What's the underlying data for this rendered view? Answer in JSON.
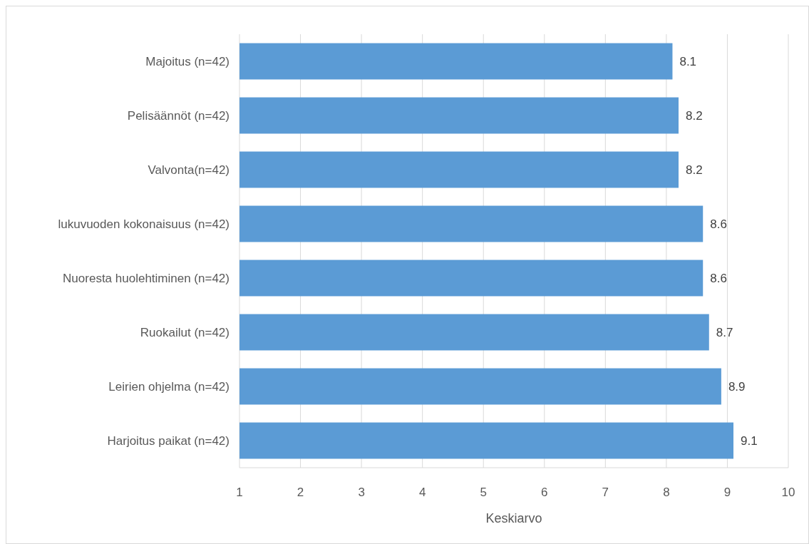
{
  "chart_data": {
    "type": "bar",
    "orientation": "horizontal",
    "xlabel": "Keskiarvo",
    "categories": [
      "Majoitus (n=42)",
      "Pelisäännöt (n=42)",
      "Valvonta(n=42)",
      "lukuvuoden kokonaisuus (n=42)",
      "Nuoresta huolehtiminen (n=42)",
      "Ruokailut (n=42)",
      "Leirien ohjelma (n=42)",
      "Harjoitus paikat (n=42)"
    ],
    "values": [
      8.1,
      8.2,
      8.2,
      8.6,
      8.6,
      8.7,
      8.9,
      9.1
    ],
    "color": "#5b9bd5",
    "xlim": [
      1,
      10
    ],
    "xticks": [
      1,
      2,
      3,
      4,
      5,
      6,
      7,
      8,
      9,
      10
    ],
    "grid": "x",
    "data_labels": true
  }
}
